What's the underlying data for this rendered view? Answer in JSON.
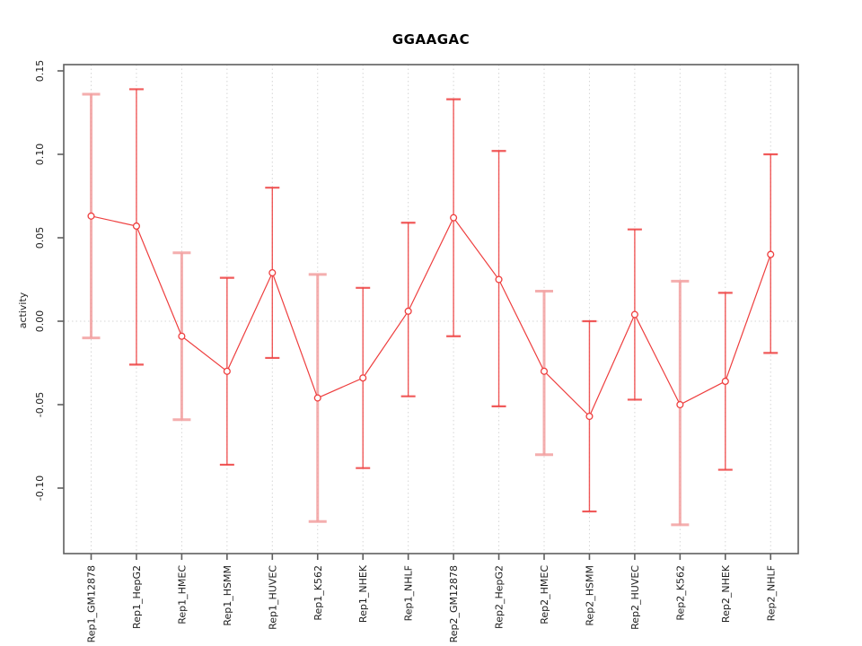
{
  "chart_data": {
    "type": "line",
    "title": "GGAAGAC",
    "ylabel": "activity",
    "xlabel": "",
    "legend": null,
    "grid": "dotted vertical line per category, dotted horizontal line at 0",
    "ylim": [
      -0.138,
      0.155
    ],
    "y_ticks": [
      {
        "label": "0.15",
        "value": 0.15
      },
      {
        "label": "0.10",
        "value": 0.1
      },
      {
        "label": "0.05",
        "value": 0.05
      },
      {
        "label": "0.00",
        "value": 0.0
      },
      {
        "label": "-0.05",
        "value": -0.05
      },
      {
        "label": "-0.10",
        "value": -0.1
      }
    ],
    "categories": [
      "Rep1_GM12878",
      "Rep1_HepG2",
      "Rep1_HMEC",
      "Rep1_HSMM",
      "Rep1_HUVEC",
      "Rep1_K562",
      "Rep1_NHEK",
      "Rep1_NHLF",
      "Rep2_GM12878",
      "Rep2_HepG2",
      "Rep2_HMEC",
      "Rep2_HSMM",
      "Rep2_HUVEC",
      "Rep2_K562",
      "Rep2_NHEK",
      "Rep2_NHLF"
    ],
    "values": [
      0.063,
      0.057,
      -0.009,
      -0.03,
      0.029,
      -0.046,
      -0.034,
      0.006,
      0.062,
      0.025,
      -0.03,
      -0.057,
      0.004,
      -0.05,
      -0.036,
      0.04
    ],
    "err_hi": [
      0.136,
      0.139,
      0.041,
      0.026,
      0.08,
      0.028,
      0.02,
      0.059,
      0.133,
      0.102,
      0.018,
      0.0,
      0.055,
      0.024,
      0.017,
      0.1
    ],
    "err_lo": [
      -0.01,
      -0.026,
      -0.059,
      -0.086,
      -0.022,
      -0.12,
      -0.088,
      -0.045,
      -0.009,
      -0.051,
      -0.08,
      -0.114,
      -0.047,
      -0.122,
      -0.089,
      -0.019
    ],
    "pale_error_bar_indices": [
      0,
      2,
      5,
      10,
      13
    ],
    "marker": "open-circle",
    "colors": {
      "series": "#ee3e3e",
      "pale": "#f3a0a0",
      "grid": "#d6d6d6",
      "axis": "#5f5f5f",
      "text": "#1c1c1c",
      "background": "#ffffff"
    }
  }
}
